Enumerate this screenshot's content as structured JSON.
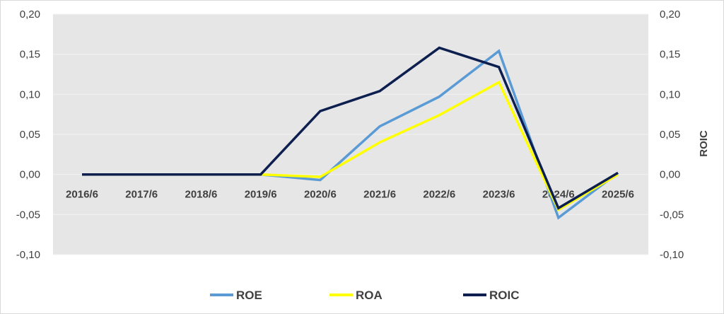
{
  "chart_data": {
    "type": "line",
    "title": "",
    "xlabel": "",
    "ylabel_left": "",
    "ylabel_right": "ROIC",
    "categories": [
      "2016/6",
      "2017/6",
      "2018/6",
      "2019/6",
      "2020/6",
      "2021/6",
      "2022/6",
      "2023/6",
      "2024/6",
      "2025/6"
    ],
    "ylim": [
      -0.1,
      0.2
    ],
    "yticks": [
      "0,20",
      "0,15",
      "0,10",
      "0,05",
      "0,00",
      "-0,05",
      "-0,10"
    ],
    "ytick_values": [
      0.2,
      0.15,
      0.1,
      0.05,
      0.0,
      -0.05,
      -0.1
    ],
    "grid": true,
    "legend_position": "bottom",
    "plot_background": "#e6e6e6",
    "series": [
      {
        "name": "ROE",
        "color": "#5b9bd5",
        "values": [
          0,
          0,
          0,
          0,
          -0.007,
          0.06,
          0.097,
          0.154,
          -0.054,
          0.002
        ]
      },
      {
        "name": "ROA",
        "color": "#ffff00",
        "values": [
          0,
          0,
          0,
          0,
          -0.003,
          0.04,
          0.074,
          0.115,
          -0.044,
          0.0
        ]
      },
      {
        "name": "ROIC",
        "color": "#0d1f4f",
        "values": [
          0,
          0,
          0,
          0,
          0.079,
          0.104,
          0.158,
          0.134,
          -0.042,
          0.002
        ]
      }
    ]
  }
}
